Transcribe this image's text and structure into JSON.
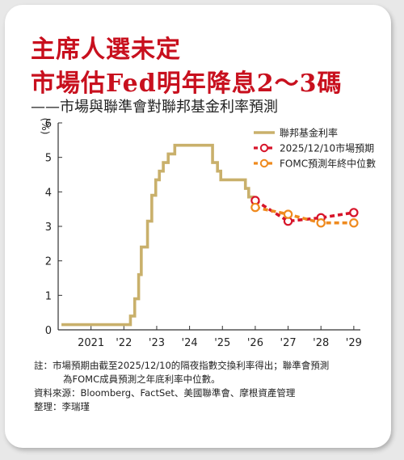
{
  "title_line1": "主席人選未定",
  "title_line2": "市場估Fed明年降息2～3碼",
  "subtitle": "——市場與聯準會對聯邦基金利率預測",
  "y_unit": "(%)",
  "notes": {
    "note_line1": "註：市場預期由截至2025/12/10的隔夜指數交換利率得出；聯準會預測",
    "note_line2": "為FOMC成員預測之年底利率中位數。",
    "source": "資料來源：Bloomberg、FactSet、美國聯準會、摩根資產管理",
    "editor": "整理：李瑞瑾"
  },
  "chart_data": {
    "type": "line",
    "title": "",
    "xlabel": "",
    "ylabel": "(%)",
    "ylim": [
      0,
      6
    ],
    "xlim": [
      2020.0,
      2029.2
    ],
    "y_ticks": [
      "0",
      "1",
      "2",
      "3",
      "4",
      "5",
      "6"
    ],
    "x_ticks": [
      {
        "label": "2021",
        "x": 2021
      },
      {
        "label": "'22",
        "x": 2022
      },
      {
        "label": "'23",
        "x": 2023
      },
      {
        "label": "'24",
        "x": 2024
      },
      {
        "label": "'25",
        "x": 2025
      },
      {
        "label": "'26",
        "x": 2026
      },
      {
        "label": "'27",
        "x": 2027
      },
      {
        "label": "'28",
        "x": 2028
      },
      {
        "label": "'29",
        "x": 2029
      }
    ],
    "grid": false,
    "legend_position": "top-right",
    "series": [
      {
        "name": "聯邦基金利率",
        "color": "#c9b06b",
        "style": "step",
        "points": [
          [
            2020.1,
            0.15
          ],
          [
            2022.2,
            0.15
          ],
          [
            2022.2,
            0.4
          ],
          [
            2022.33,
            0.4
          ],
          [
            2022.33,
            0.9
          ],
          [
            2022.45,
            0.9
          ],
          [
            2022.45,
            1.6
          ],
          [
            2022.53,
            1.6
          ],
          [
            2022.53,
            2.4
          ],
          [
            2022.72,
            2.4
          ],
          [
            2022.72,
            3.15
          ],
          [
            2022.85,
            3.15
          ],
          [
            2022.85,
            3.9
          ],
          [
            2022.97,
            3.9
          ],
          [
            2022.97,
            4.35
          ],
          [
            2023.08,
            4.35
          ],
          [
            2023.08,
            4.6
          ],
          [
            2023.2,
            4.6
          ],
          [
            2023.2,
            4.85
          ],
          [
            2023.35,
            4.85
          ],
          [
            2023.35,
            5.1
          ],
          [
            2023.55,
            5.1
          ],
          [
            2023.55,
            5.35
          ],
          [
            2024.7,
            5.35
          ],
          [
            2024.7,
            4.85
          ],
          [
            2024.85,
            4.85
          ],
          [
            2024.85,
            4.6
          ],
          [
            2024.95,
            4.6
          ],
          [
            2024.95,
            4.35
          ],
          [
            2025.7,
            4.35
          ],
          [
            2025.7,
            4.1
          ],
          [
            2025.8,
            4.1
          ],
          [
            2025.8,
            3.85
          ],
          [
            2025.93,
            3.85
          ],
          [
            2025.93,
            3.65
          ]
        ]
      },
      {
        "name": "2025/12/10市場預期",
        "color": "#d7152a",
        "style": "dashed",
        "points": [
          [
            2026.0,
            3.75
          ],
          [
            2027.0,
            3.15
          ],
          [
            2028.0,
            3.25
          ],
          [
            2029.0,
            3.4
          ]
        ]
      },
      {
        "name": "FOMC預測年終中位數",
        "color": "#ef8a1e",
        "style": "dashed",
        "points": [
          [
            2026.0,
            3.55
          ],
          [
            2027.0,
            3.35
          ],
          [
            2028.0,
            3.1
          ],
          [
            2029.0,
            3.1
          ]
        ]
      }
    ]
  }
}
